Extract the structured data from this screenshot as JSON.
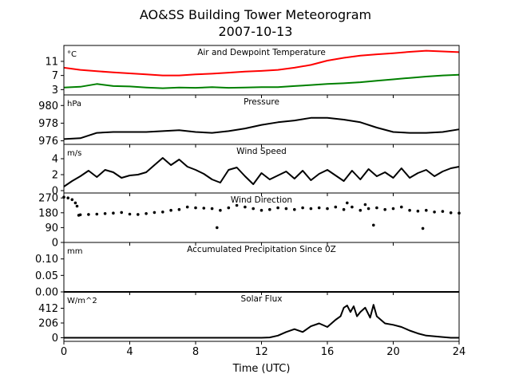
{
  "chart_data": {
    "title": "AO&SS Building Tower Meteorogram",
    "subtitle": "2007-10-13",
    "xlabel": "Time (UTC)",
    "xlim": [
      0,
      24
    ],
    "xticks": [
      0,
      4,
      8,
      12,
      16,
      20,
      24
    ],
    "panels": [
      {
        "type": "line",
        "title": "Air and Dewpoint Temperature",
        "unit": "°C",
        "ylim": [
          1.5,
          15.5
        ],
        "yticks": [
          3,
          7,
          11
        ],
        "series": [
          {
            "color": "#ff0000",
            "x": [
              0,
              1,
              2,
              3,
              4,
              5,
              6,
              7,
              8,
              9,
              10,
              11,
              12,
              13,
              14,
              15,
              16,
              17,
              18,
              19,
              20,
              21,
              22,
              23,
              24
            ],
            "y": [
              9.2,
              8.6,
              8.2,
              7.9,
              7.6,
              7.3,
              7.0,
              7.0,
              7.3,
              7.5,
              7.8,
              8.1,
              8.3,
              8.6,
              9.2,
              10.0,
              11.2,
              12.0,
              12.6,
              13.0,
              13.3,
              13.7,
              14.0,
              13.8,
              13.6
            ]
          },
          {
            "color": "#008000",
            "x": [
              0,
              1,
              2,
              3,
              4,
              5,
              6,
              7,
              8,
              9,
              10,
              11,
              12,
              13,
              14,
              15,
              16,
              17,
              18,
              19,
              20,
              21,
              22,
              23,
              24
            ],
            "y": [
              3.6,
              3.8,
              4.6,
              4.0,
              3.9,
              3.6,
              3.4,
              3.6,
              3.5,
              3.7,
              3.5,
              3.6,
              3.7,
              3.7,
              4.0,
              4.3,
              4.6,
              4.8,
              5.1,
              5.5,
              5.9,
              6.3,
              6.7,
              7.0,
              7.2
            ]
          }
        ]
      },
      {
        "type": "line",
        "title": "Pressure",
        "unit": "hPa",
        "ylim": [
          975.6,
          981.2
        ],
        "yticks": [
          976,
          978,
          980
        ],
        "series": [
          {
            "color": "#000000",
            "x": [
              0,
              1,
              2,
              3,
              4,
              5,
              6,
              7,
              8,
              9,
              10,
              11,
              12,
              13,
              14,
              15,
              16,
              17,
              18,
              19,
              20,
              21,
              22,
              23,
              24
            ],
            "y": [
              976.2,
              976.3,
              976.9,
              977.0,
              977.0,
              977.0,
              977.1,
              977.2,
              977.0,
              976.9,
              977.1,
              977.4,
              977.8,
              978.1,
              978.3,
              978.6,
              978.6,
              978.4,
              978.1,
              977.5,
              977.0,
              976.9,
              976.9,
              977.0,
              977.3
            ]
          }
        ]
      },
      {
        "type": "line",
        "title": "Wind Speed",
        "unit": "m/s",
        "ylim": [
          -0.3,
          5.8
        ],
        "yticks": [
          0,
          2,
          4
        ],
        "series": [
          {
            "color": "#000000",
            "x": [
              0,
              0.5,
              1,
              1.5,
              2,
              2.5,
              3,
              3.5,
              4,
              4.5,
              5,
              5.5,
              6,
              6.5,
              7,
              7.5,
              8,
              8.5,
              9,
              9.5,
              10,
              10.5,
              11,
              11.5,
              12,
              12.5,
              13,
              13.5,
              14,
              14.5,
              15,
              15.5,
              16,
              16.5,
              17,
              17.5,
              18,
              18.5,
              19,
              19.5,
              20,
              20.5,
              21,
              21.5,
              22,
              22.5,
              23,
              23.5,
              24
            ],
            "y": [
              0.5,
              1.2,
              1.8,
              2.5,
              1.7,
              2.6,
              2.3,
              1.6,
              1.9,
              2.0,
              2.3,
              3.2,
              4.1,
              3.2,
              3.9,
              3.0,
              2.6,
              2.1,
              1.4,
              1.0,
              2.6,
              2.9,
              1.8,
              0.8,
              2.2,
              1.4,
              1.9,
              2.4,
              1.5,
              2.5,
              1.3,
              2.1,
              2.6,
              1.9,
              1.2,
              2.5,
              1.4,
              2.7,
              1.8,
              2.3,
              1.6,
              2.8,
              1.6,
              2.2,
              2.6,
              1.8,
              2.4,
              2.8,
              3.0
            ]
          }
        ]
      },
      {
        "type": "scatter",
        "title": "Wind Direction",
        "unit": "",
        "ylim": [
          0,
          300
        ],
        "yticks": [
          0,
          90,
          180,
          270
        ],
        "series": [
          {
            "color": "#000000",
            "x": [
              0,
              0.25,
              0.5,
              0.7,
              0.8,
              0.9,
              1,
              1.5,
              2,
              2.5,
              3,
              3.5,
              4,
              4.5,
              5,
              5.5,
              6,
              6.5,
              7,
              7.5,
              8,
              8.5,
              9,
              9.3,
              9.5,
              10,
              10.5,
              11,
              11.5,
              12,
              12.5,
              13,
              13.5,
              14,
              14.5,
              15,
              15.5,
              16,
              16.5,
              17,
              17.2,
              17.5,
              18,
              18.3,
              18.5,
              18.8,
              19,
              19.5,
              20,
              20.5,
              21,
              21.5,
              21.8,
              22,
              22.5,
              23,
              23.5,
              24
            ],
            "y": [
              275,
              270,
              260,
              240,
              220,
              165,
              168,
              170,
              172,
              175,
              178,
              182,
              172,
              170,
              175,
              182,
              185,
              195,
              200,
              215,
              210,
              208,
              205,
              90,
              195,
              210,
              225,
              215,
              205,
              195,
              200,
              210,
              205,
              200,
              210,
              205,
              210,
              205,
              215,
              200,
              240,
              215,
              195,
              230,
              205,
              105,
              210,
              200,
              205,
              215,
              195,
              190,
              85,
              195,
              185,
              188,
              180,
              178
            ]
          }
        ]
      },
      {
        "type": "line",
        "title": "Accumulated Precipitation Since 0Z",
        "unit": "mm",
        "ylim": [
          0,
          0.15
        ],
        "yticks": [
          0.0,
          0.05,
          0.1
        ],
        "ytick_labels": [
          "0.00",
          "0.05",
          "0.10"
        ],
        "series": [
          {
            "color": "#000000",
            "x": [
              0,
              24
            ],
            "y": [
              0,
              0
            ]
          }
        ]
      },
      {
        "type": "line",
        "title": "Solar Flux",
        "unit": "W/m^2",
        "ylim": [
          -50,
          640
        ],
        "yticks": [
          0,
          206,
          412
        ],
        "series": [
          {
            "color": "#000000",
            "x": [
              0,
              6,
              12,
              12.5,
              13,
              13.5,
              14,
              14.5,
              15,
              15.5,
              16,
              16.5,
              16.8,
              17,
              17.2,
              17.4,
              17.6,
              17.8,
              18,
              18.3,
              18.6,
              18.8,
              19,
              19.5,
              20,
              20.5,
              21,
              21.5,
              22,
              23,
              23.5,
              24
            ],
            "y": [
              0,
              0,
              0,
              5,
              30,
              80,
              120,
              80,
              160,
              200,
              150,
              250,
              300,
              420,
              450,
              360,
              440,
              300,
              360,
              420,
              280,
              460,
              300,
              200,
              180,
              150,
              100,
              60,
              30,
              10,
              0,
              0
            ]
          }
        ]
      }
    ]
  }
}
